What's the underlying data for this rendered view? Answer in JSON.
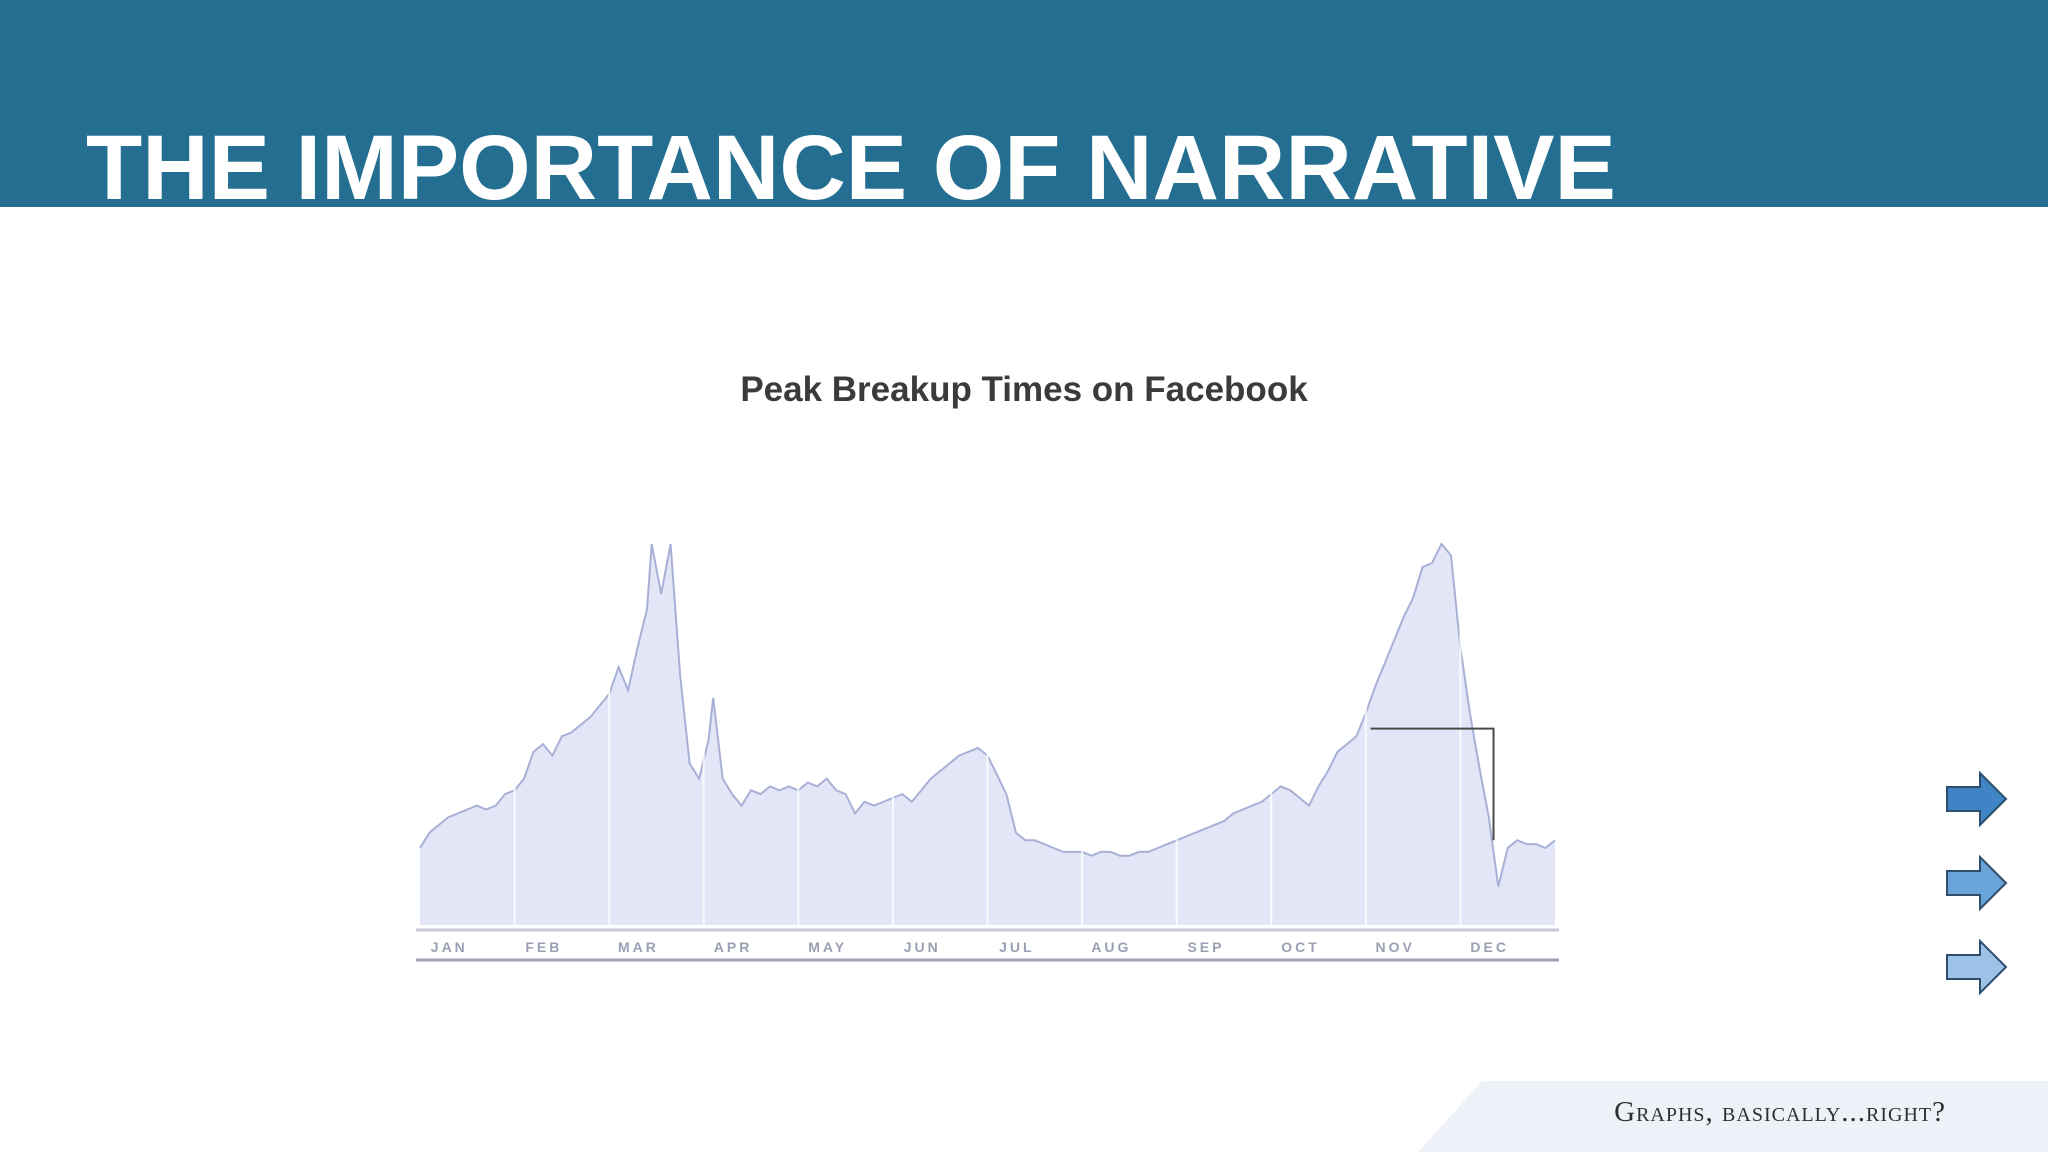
{
  "slide": {
    "title": "THE IMPORTANCE OF NARRATIVE",
    "footer": "Graphs, basically...right?",
    "header_color": "#246f91"
  },
  "nav": {
    "arrows": [
      {
        "name": "next-arrow-1",
        "color": "#3f84c4"
      },
      {
        "name": "next-arrow-2",
        "color": "#6aa3d8"
      },
      {
        "name": "next-arrow-3",
        "color": "#9cc2e8"
      }
    ]
  },
  "chart_data": {
    "type": "area",
    "title": "Peak Breakup Times on Facebook",
    "xlabel": "",
    "ylabel": "",
    "categories": [
      "JAN",
      "FEB",
      "MAR",
      "APR",
      "MAY",
      "JUN",
      "JUL",
      "AUG",
      "SEP",
      "OCT",
      "NOV",
      "DEC"
    ],
    "x_range": [
      0,
      12
    ],
    "ylim": [
      0,
      100
    ],
    "grid": false,
    "legend": "none",
    "fill_color": "#e3e6f6",
    "line_color": "#a9b0d6",
    "series": [
      {
        "values": [
          [
            0.0,
            20
          ],
          [
            0.1,
            24
          ],
          [
            0.2,
            26
          ],
          [
            0.3,
            28
          ],
          [
            0.4,
            29
          ],
          [
            0.5,
            30
          ],
          [
            0.6,
            31
          ],
          [
            0.7,
            30
          ],
          [
            0.8,
            31
          ],
          [
            0.9,
            34
          ],
          [
            1.0,
            35
          ],
          [
            1.1,
            38
          ],
          [
            1.2,
            45
          ],
          [
            1.3,
            47
          ],
          [
            1.4,
            44
          ],
          [
            1.5,
            49
          ],
          [
            1.6,
            50
          ],
          [
            1.7,
            52
          ],
          [
            1.8,
            54
          ],
          [
            1.9,
            57
          ],
          [
            2.0,
            60
          ],
          [
            2.1,
            67
          ],
          [
            2.2,
            61
          ],
          [
            2.3,
            72
          ],
          [
            2.4,
            82
          ],
          [
            2.45,
            99
          ],
          [
            2.55,
            86
          ],
          [
            2.65,
            99
          ],
          [
            2.75,
            65
          ],
          [
            2.85,
            42
          ],
          [
            2.95,
            38
          ],
          [
            3.05,
            48
          ],
          [
            3.1,
            59
          ],
          [
            3.2,
            38
          ],
          [
            3.3,
            34
          ],
          [
            3.4,
            31
          ],
          [
            3.5,
            35
          ],
          [
            3.6,
            34
          ],
          [
            3.7,
            36
          ],
          [
            3.8,
            35
          ],
          [
            3.9,
            36
          ],
          [
            4.0,
            35
          ],
          [
            4.1,
            37
          ],
          [
            4.2,
            36
          ],
          [
            4.3,
            38
          ],
          [
            4.4,
            35
          ],
          [
            4.5,
            34
          ],
          [
            4.6,
            29
          ],
          [
            4.7,
            32
          ],
          [
            4.8,
            31
          ],
          [
            4.9,
            32
          ],
          [
            5.0,
            33
          ],
          [
            5.1,
            34
          ],
          [
            5.2,
            32
          ],
          [
            5.3,
            35
          ],
          [
            5.4,
            38
          ],
          [
            5.5,
            40
          ],
          [
            5.6,
            42
          ],
          [
            5.7,
            44
          ],
          [
            5.8,
            45
          ],
          [
            5.9,
            46
          ],
          [
            6.0,
            44
          ],
          [
            6.1,
            39
          ],
          [
            6.2,
            34
          ],
          [
            6.3,
            24
          ],
          [
            6.4,
            22
          ],
          [
            6.5,
            22
          ],
          [
            6.6,
            21
          ],
          [
            6.7,
            20
          ],
          [
            6.8,
            19
          ],
          [
            6.9,
            19
          ],
          [
            7.0,
            19
          ],
          [
            7.1,
            18
          ],
          [
            7.2,
            19
          ],
          [
            7.3,
            19
          ],
          [
            7.4,
            18
          ],
          [
            7.5,
            18
          ],
          [
            7.6,
            19
          ],
          [
            7.7,
            19
          ],
          [
            7.8,
            20
          ],
          [
            7.9,
            21
          ],
          [
            8.0,
            22
          ],
          [
            8.1,
            23
          ],
          [
            8.2,
            24
          ],
          [
            8.3,
            25
          ],
          [
            8.4,
            26
          ],
          [
            8.5,
            27
          ],
          [
            8.6,
            29
          ],
          [
            8.7,
            30
          ],
          [
            8.8,
            31
          ],
          [
            8.9,
            32
          ],
          [
            9.0,
            34
          ],
          [
            9.1,
            36
          ],
          [
            9.2,
            35
          ],
          [
            9.3,
            33
          ],
          [
            9.4,
            31
          ],
          [
            9.5,
            36
          ],
          [
            9.6,
            40
          ],
          [
            9.7,
            45
          ],
          [
            9.8,
            47
          ],
          [
            9.9,
            49
          ],
          [
            10.0,
            55
          ],
          [
            10.1,
            62
          ],
          [
            10.2,
            68
          ],
          [
            10.3,
            74
          ],
          [
            10.4,
            80
          ],
          [
            10.5,
            85
          ],
          [
            10.6,
            93
          ],
          [
            10.7,
            94
          ],
          [
            10.8,
            99
          ],
          [
            10.9,
            96
          ],
          [
            11.0,
            72
          ],
          [
            11.1,
            55
          ],
          [
            11.2,
            41
          ],
          [
            11.3,
            28
          ],
          [
            11.4,
            10
          ],
          [
            11.5,
            20
          ],
          [
            11.6,
            22
          ],
          [
            11.7,
            21
          ],
          [
            11.8,
            21
          ],
          [
            11.9,
            20
          ],
          [
            12.0,
            22
          ]
        ]
      }
    ],
    "annotation": {
      "type": "bracket",
      "x_start": 10.05,
      "x_end": 11.35,
      "y": 51,
      "y_end": 22
    }
  }
}
